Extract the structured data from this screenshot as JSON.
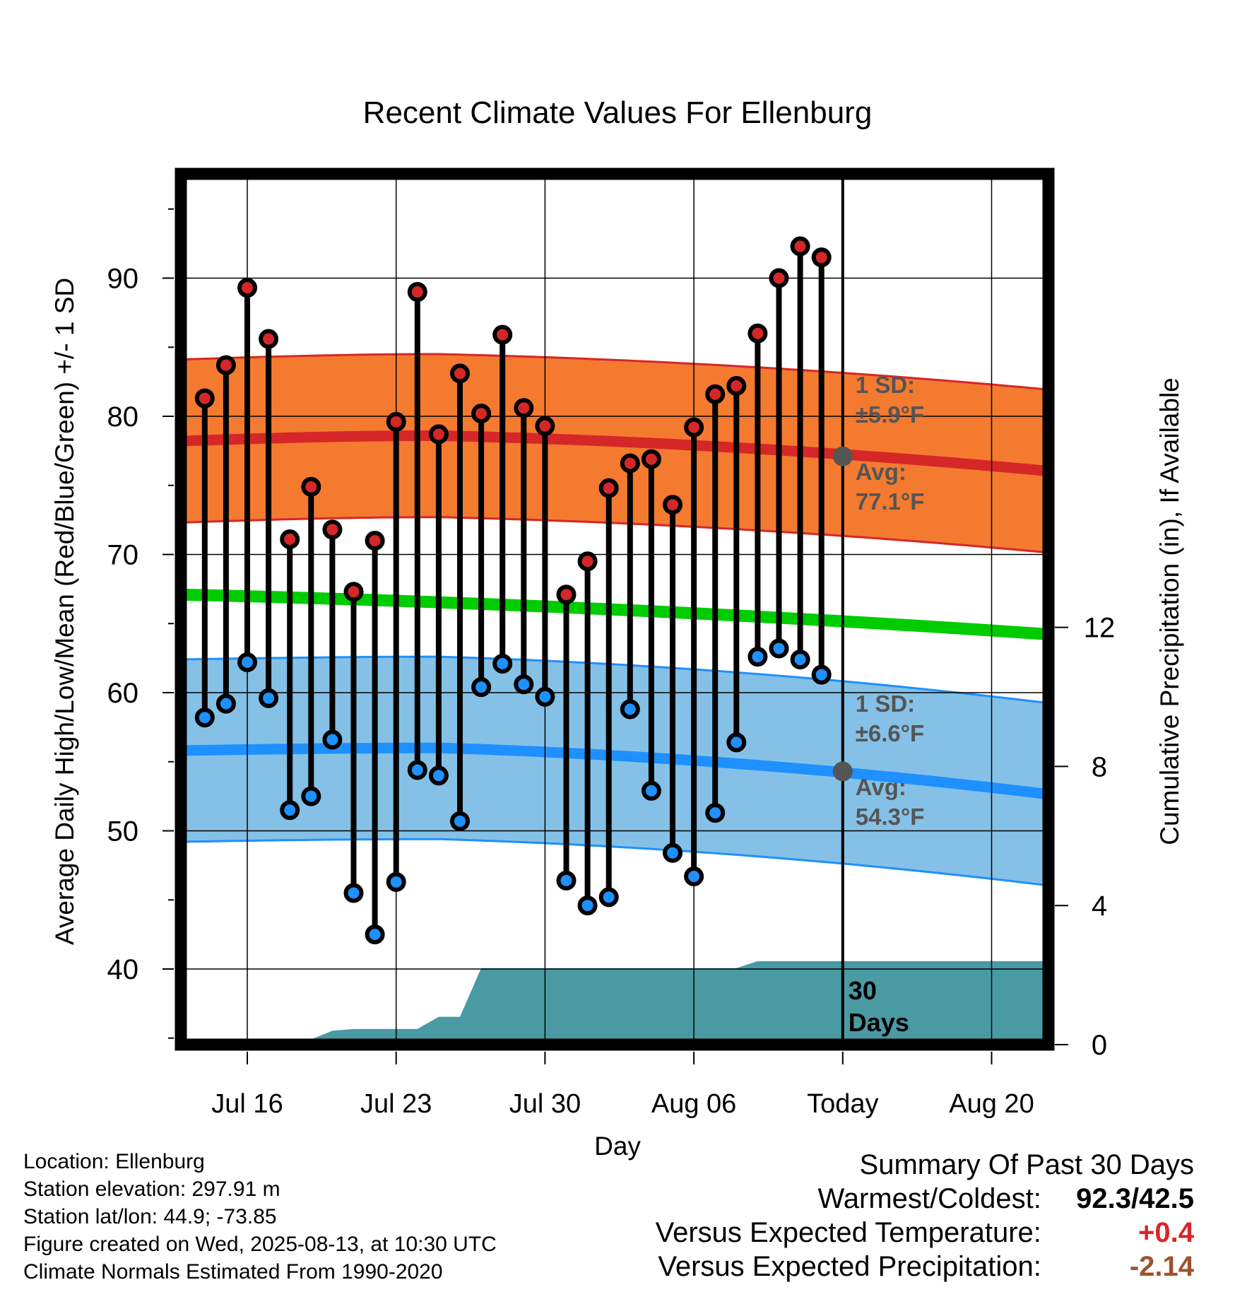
{
  "chart_data": {
    "type": "line",
    "title": "Recent Climate Values For Ellenburg",
    "xlabel": "Day",
    "ylabel": "Average Daily High/Low/Mean (Red/Blue/Green) +/- 1 SD",
    "y2label": "Cumulative Precipitation (in), If Available",
    "ylim": [
      35,
      97
    ],
    "y_ticks": [
      40,
      50,
      60,
      70,
      80,
      90
    ],
    "y2_ticks": [
      0,
      4,
      8,
      12
    ],
    "x_ticks": [
      {
        "date": "2025-07-16",
        "label": "Jul 16"
      },
      {
        "date": "2025-07-23",
        "label": "Jul 23"
      },
      {
        "date": "2025-07-30",
        "label": "Jul 30"
      },
      {
        "date": "2025-08-06",
        "label": "Aug 06"
      },
      {
        "date": "2025-08-13",
        "label": "Today"
      },
      {
        "date": "2025-08-20",
        "label": "Aug 20"
      }
    ],
    "x_range": [
      "2025-07-12.7",
      "2025-08-22.9"
    ],
    "grid": true,
    "dates": [
      "2025-07-14",
      "2025-07-15",
      "2025-07-16",
      "2025-07-17",
      "2025-07-18",
      "2025-07-19",
      "2025-07-20",
      "2025-07-21",
      "2025-07-22",
      "2025-07-23",
      "2025-07-24",
      "2025-07-25",
      "2025-07-26",
      "2025-07-27",
      "2025-07-28",
      "2025-07-29",
      "2025-07-30",
      "2025-07-31",
      "2025-08-01",
      "2025-08-02",
      "2025-08-03",
      "2025-08-04",
      "2025-08-05",
      "2025-08-06",
      "2025-08-07",
      "2025-08-08",
      "2025-08-09",
      "2025-08-10",
      "2025-08-11",
      "2025-08-12"
    ],
    "series": [
      {
        "name": "Daily High",
        "color": "#d62728",
        "values": [
          81.3,
          83.7,
          89.3,
          85.6,
          71.1,
          74.9,
          71.8,
          67.3,
          71.0,
          79.6,
          89.0,
          78.7,
          83.1,
          80.2,
          85.9,
          80.6,
          79.3,
          67.1,
          69.5,
          74.8,
          76.6,
          76.9,
          73.6,
          79.2,
          81.6,
          82.2,
          86.0,
          90.0,
          92.3,
          91.5
        ]
      },
      {
        "name": "Daily Low",
        "color": "#1e90ff",
        "values": [
          58.2,
          59.2,
          62.2,
          59.6,
          51.5,
          52.5,
          56.6,
          45.5,
          42.5,
          46.3,
          54.4,
          54.0,
          50.7,
          60.4,
          62.1,
          60.6,
          59.7,
          46.4,
          44.6,
          45.2,
          58.8,
          52.9,
          48.4,
          46.7,
          51.3,
          56.4,
          62.6,
          63.2,
          62.4,
          61.3
        ]
      }
    ],
    "normals": {
      "high_avg": {
        "start": 78.2,
        "peak": 78.6,
        "today": 77.1,
        "end": 76.0
      },
      "high_sd": 5.9,
      "low_avg": {
        "start": 55.8,
        "peak": 56.0,
        "today": 54.3,
        "end": 52.6
      },
      "low_sd": 6.6,
      "mean": {
        "start": 67.1,
        "today": 65.8,
        "end": 64.2
      }
    },
    "precip_cumulative": {
      "dates": [
        "2025-07-12.7",
        "2025-07-17",
        "2025-07-18",
        "2025-07-19",
        "2025-07-20",
        "2025-07-21",
        "2025-07-22",
        "2025-07-23",
        "2025-07-24",
        "2025-07-25",
        "2025-07-26",
        "2025-07-27",
        "2025-07-28",
        "2025-08-08",
        "2025-08-09",
        "2025-08-22.9"
      ],
      "values": [
        0,
        0.0,
        0.1,
        0.15,
        0.4,
        0.45,
        0.45,
        0.45,
        0.45,
        0.8,
        0.8,
        2.2,
        2.2,
        2.2,
        2.4,
        2.4
      ]
    },
    "annotations": {
      "high_sd_label": "1 SD:",
      "high_sd_value": "±5.9°F",
      "high_avg_label": "Avg:",
      "high_avg_value": "77.1°F",
      "low_sd_label": "1 SD:",
      "low_sd_value": "±6.6°F",
      "low_avg_label": "Avg:",
      "low_avg_value": "54.3°F",
      "window_line1": "30",
      "window_line2": "Days"
    }
  },
  "info": {
    "location": "Location: Ellenburg",
    "elevation": "Station elevation: 297.91 m",
    "latlon": "Station lat/lon: 44.9; -73.85",
    "created": "Figure created on Wed, 2025-08-13, at 10:30 UTC",
    "normals": "Climate Normals Estimated From 1990-2020"
  },
  "summary": {
    "title": "Summary Of Past 30 Days",
    "warm_cold_label": "Warmest/Coldest:",
    "warm_cold_value": "92.3/42.5",
    "temp_label": "Versus Expected Temperature:",
    "temp_value": "+0.4",
    "temp_color": "#d62728",
    "precip_label": "Versus Expected Precipitation:",
    "precip_value": "-2.14",
    "precip_color": "#a0522d"
  }
}
